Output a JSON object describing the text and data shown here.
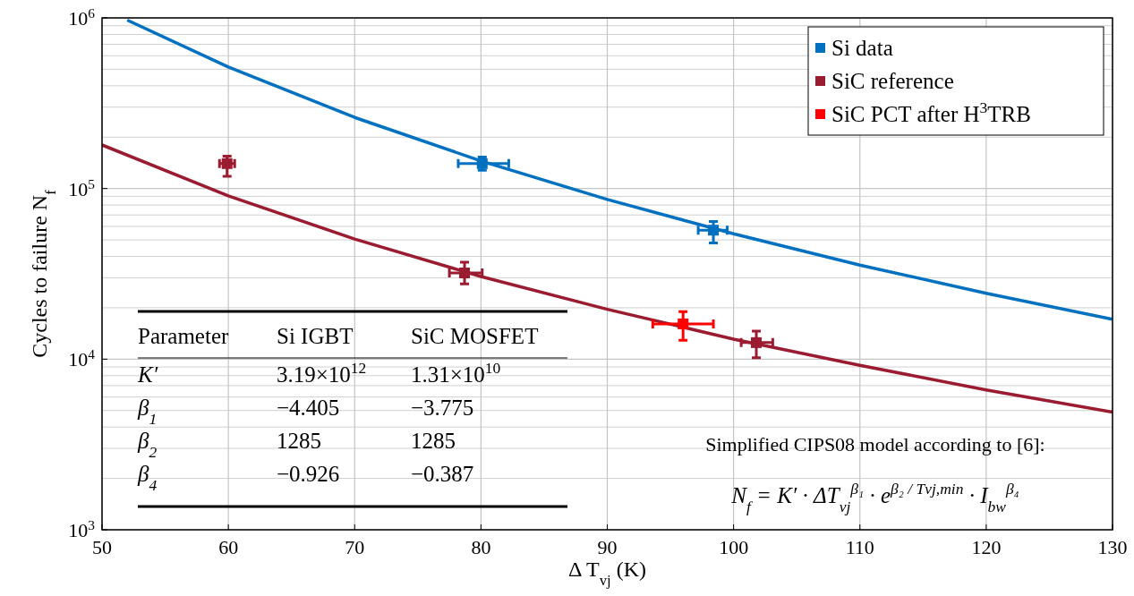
{
  "chart_data": {
    "type": "scatter",
    "xlabel": "Δ T$_{vj}$ (K)",
    "ylabel": "Cycles to failure N$_{f}$",
    "log": "y",
    "grid": true,
    "legend": "top right",
    "marker": "square",
    "xlim": [
      50,
      130
    ],
    "xticks": [
      50,
      60,
      70,
      80,
      90,
      100,
      110,
      120,
      130
    ],
    "ylim": [
      1000,
      1000000
    ],
    "yticks": [
      {
        "value": 1000,
        "label": "10$^{3}$"
      },
      {
        "value": 10000,
        "label": "10$^{4}$"
      },
      {
        "value": 100000,
        "label": "10$^{5}$"
      },
      {
        "value": 1000000,
        "label": "10$^{6}$"
      }
    ],
    "series": [
      {
        "type": "line",
        "marker": "none",
        "color": "#0070c0",
        "x": [
          52,
          60,
          70,
          80,
          90,
          100,
          110,
          120,
          130
        ],
        "values": [
          970000,
          515000,
          261000,
          145000,
          86300,
          54300,
          35600,
          24300,
          17100
        ]
      },
      {
        "type": "line",
        "marker": "none",
        "color": "#9b1b30",
        "x": [
          50,
          60,
          70,
          80,
          90,
          100,
          110,
          120,
          130
        ],
        "values": [
          180000,
          90500,
          50600,
          30500,
          19600,
          13100,
          9200,
          6600,
          4900
        ]
      },
      {
        "name": "Si data",
        "color": "#0070c0",
        "x": [
          80.1,
          98.4
        ],
        "values": [
          140000,
          57000
        ],
        "errors": [
          [
            128000,
            153000
          ],
          [
            48000,
            64000
          ]
        ],
        "xerrors": [
          [
            78.2,
            82.2
          ],
          [
            97.2,
            99.5
          ]
        ]
      },
      {
        "name": "SiC reference",
        "color": "#9b1b30",
        "x": [
          59.9,
          78.7,
          101.8
        ],
        "values": [
          140000,
          32000,
          12500
        ],
        "errors": [
          [
            118000,
            155000
          ],
          [
            27600,
            37000
          ],
          [
            10200,
            14600
          ]
        ],
        "xerrors": [
          [
            59.3,
            60.5
          ],
          [
            77.5,
            80.1
          ],
          [
            100.6,
            103.1
          ]
        ]
      },
      {
        "name": "SiC PCT after H$^{3}$TRB",
        "color": "#ff0000",
        "x": [
          96.0
        ],
        "values": [
          16100
        ],
        "errors": [
          [
            12900,
            19000
          ]
        ],
        "xerrors": [
          [
            93.6,
            98.4
          ]
        ]
      }
    ],
    "annotations": [
      "Parameter\tSi IGBT\tSiC MOSFET",
      "K′\t3.19×10$^{12}$\t1.31×10$^{10}$",
      "β$_{1}$\t−4.405\t−3.775",
      "β$_{2}$\t1285\t1285",
      "β$_{4}$\t−0.926\t−0.387",
      "Simplified CIPS08 model according to [6]:",
      "N$_{f}$ = K′ · ΔT$_{vj}$$^{β₁}$ · e$^{β₂ / Tvj,min}$ · I$_{bw}$$^{β₄}$"
    ]
  }
}
